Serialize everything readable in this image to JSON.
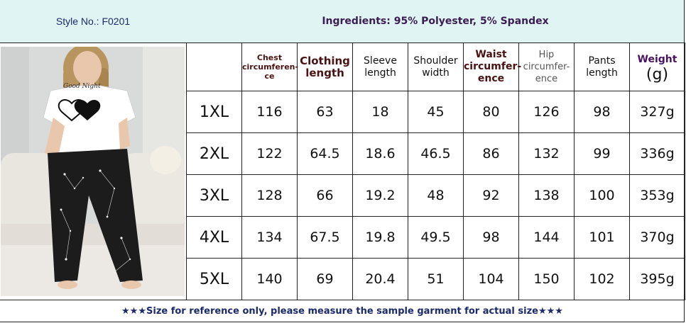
{
  "header": {
    "style_no": "Style No.: F0201",
    "ingredients": "Ingredients: 95% Polyester, 5% Spandex"
  },
  "product_image": {
    "tee_print": "Good Night"
  },
  "table": {
    "columns": [
      "",
      "Chest circumferen-ce",
      "Clothing length",
      "Sleeve length",
      "Shoulder width",
      "Waist circumfer-ence",
      "Hip circumfer-ence",
      "Pants length",
      "Weight"
    ],
    "weight_unit": "(g)",
    "rows": [
      [
        "1XL",
        "116",
        "63",
        "18",
        "45",
        "80",
        "126",
        "98",
        "327g"
      ],
      [
        "2XL",
        "122",
        "64.5",
        "18.6",
        "46.5",
        "86",
        "132",
        "99",
        "336g"
      ],
      [
        "3XL",
        "128",
        "66",
        "19.2",
        "48",
        "92",
        "138",
        "100",
        "353g"
      ],
      [
        "4XL",
        "134",
        "67.5",
        "19.8",
        "49.5",
        "98",
        "144",
        "101",
        "370g"
      ],
      [
        "5XL",
        "140",
        "69",
        "20.4",
        "51",
        "104",
        "150",
        "102",
        "395g"
      ]
    ]
  },
  "footer": {
    "note": "★★★Size for reference only, please measure the sample garment for actual size★★★"
  }
}
